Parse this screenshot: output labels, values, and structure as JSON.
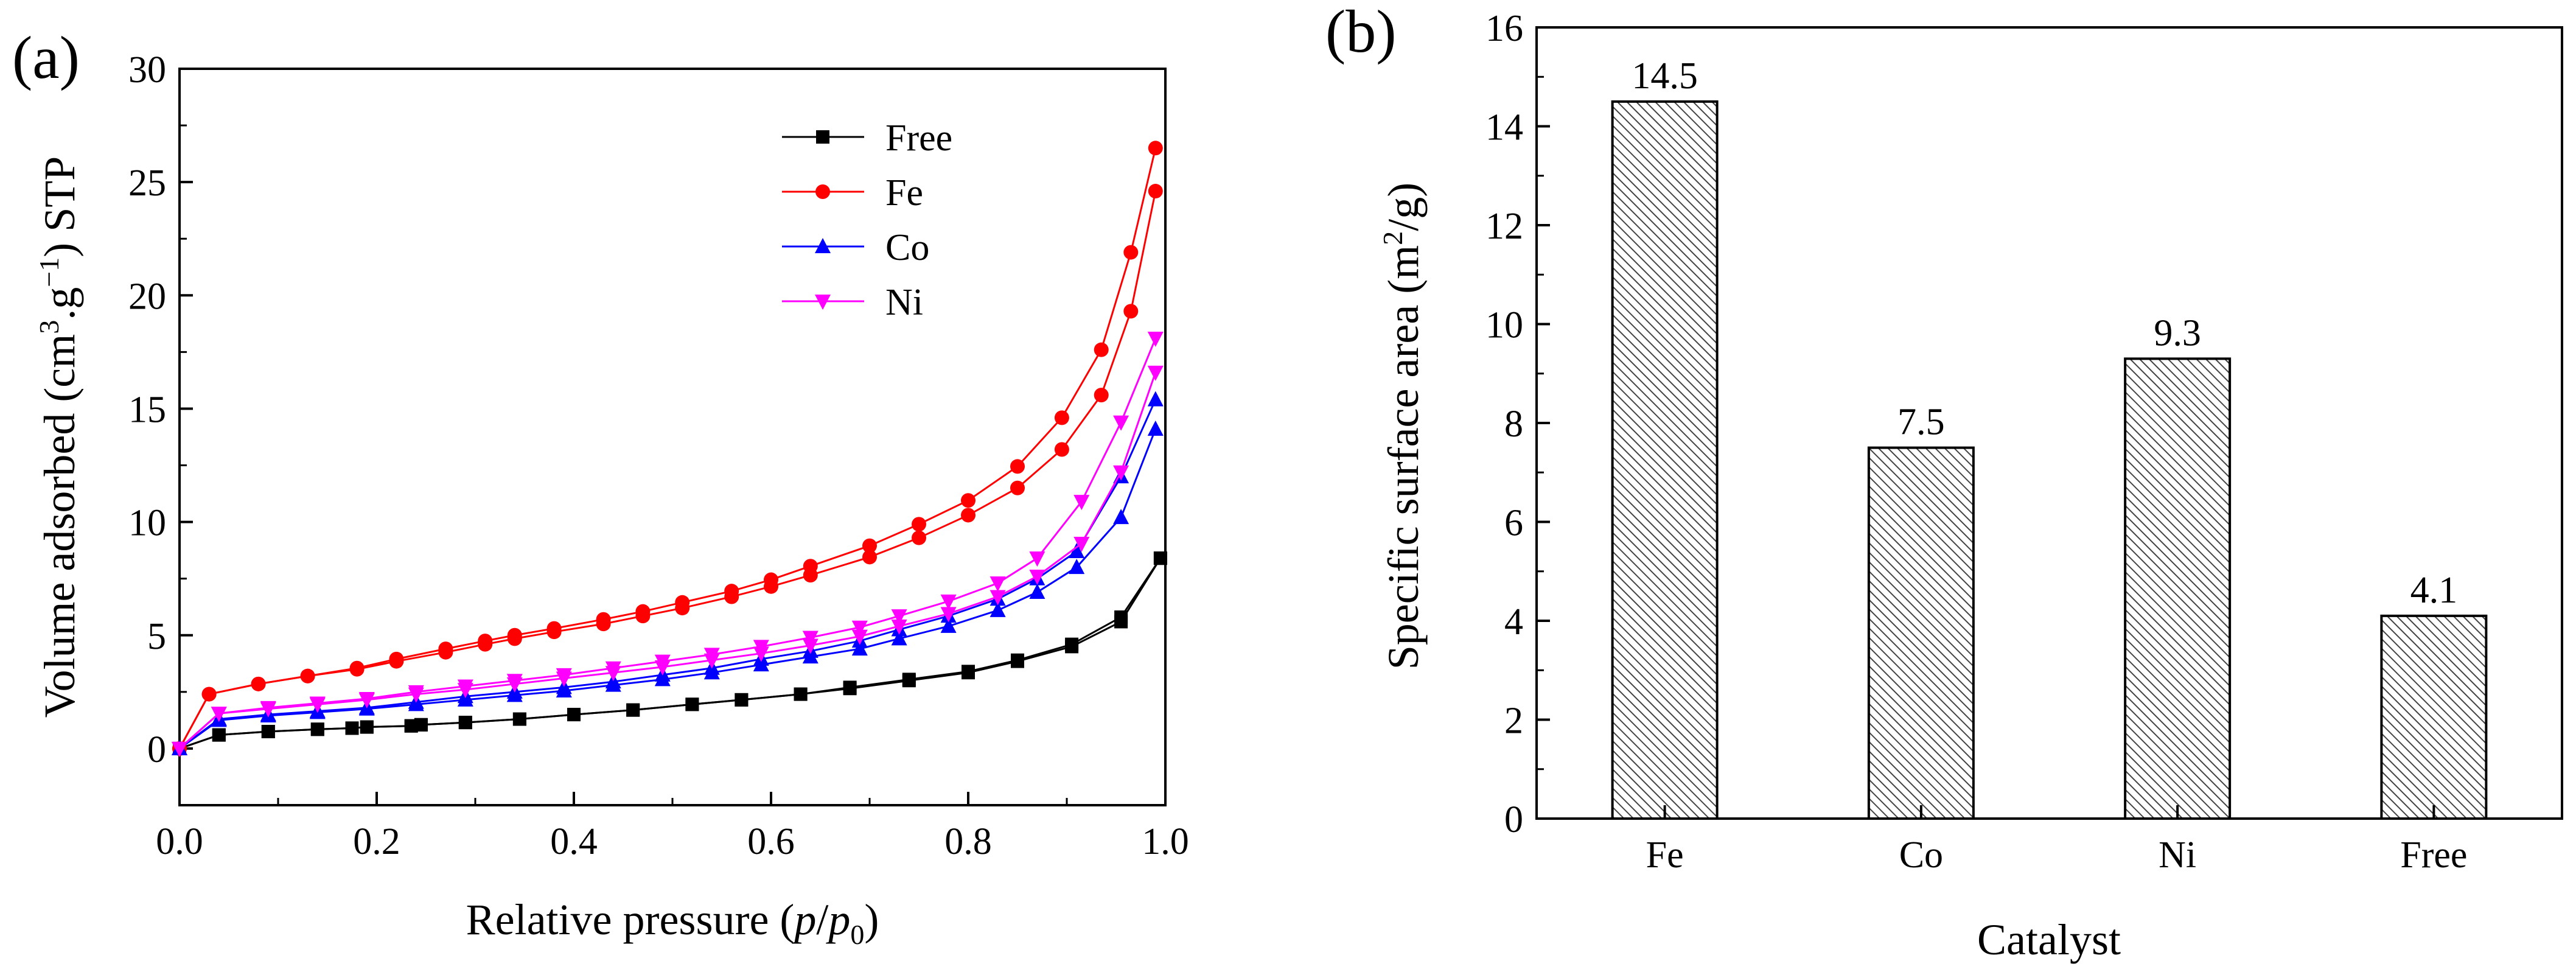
{
  "chart_data": [
    {
      "panel_label": "(a)",
      "type": "line",
      "xlabel_prefix": "Relative pressure (",
      "xlabel_p": "p",
      "xlabel_slash": "/",
      "xlabel_p0": "p",
      "xlabel_sub": "0",
      "xlabel_suffix": ")",
      "ylabel_pre": "Volume adsorbed (cm",
      "ylabel_sup1": "3",
      "ylabel_mid": ".g",
      "ylabel_sup2": "−1",
      "ylabel_post": ") STP",
      "xlim": [
        0,
        1.0
      ],
      "ylim": [
        -2.5,
        30
      ],
      "xticks": [
        "0.0",
        "0.2",
        "0.4",
        "0.6",
        "0.8",
        "1.0"
      ],
      "yticks": [
        "0",
        "5",
        "10",
        "15",
        "20",
        "25",
        "30"
      ],
      "legend_position": "top-center",
      "series": [
        {
          "name": "Free",
          "color": "#000000",
          "marker": "square",
          "x": [
            0.0,
            0.04,
            0.09,
            0.14,
            0.175,
            0.19,
            0.235,
            0.245,
            0.29,
            0.345,
            0.4,
            0.46,
            0.52,
            0.57,
            0.63,
            0.68,
            0.74,
            0.8,
            0.85,
            0.905,
            0.955,
            0.995
          ],
          "adsorption": [
            0.0,
            0.6,
            0.75,
            0.85,
            0.9,
            0.95,
            1.0,
            1.05,
            1.15,
            1.3,
            1.5,
            1.7,
            1.95,
            2.15,
            2.4,
            2.65,
            3.0,
            3.35,
            3.85,
            4.5,
            5.6,
            8.4
          ],
          "desorption": [
            0.0,
            0.6,
            0.75,
            0.85,
            0.9,
            0.95,
            1.0,
            1.05,
            1.15,
            1.3,
            1.5,
            1.7,
            1.95,
            2.15,
            2.4,
            2.7,
            3.05,
            3.4,
            3.9,
            4.6,
            5.8,
            8.4
          ]
        },
        {
          "name": "Fe",
          "color": "#ff0000",
          "marker": "circle",
          "x": [
            0.0,
            0.03,
            0.08,
            0.13,
            0.18,
            0.22,
            0.27,
            0.31,
            0.34,
            0.38,
            0.43,
            0.47,
            0.51,
            0.56,
            0.6,
            0.64,
            0.7,
            0.75,
            0.8,
            0.85,
            0.895,
            0.935,
            0.965,
            0.99
          ],
          "adsorption": [
            0.0,
            2.4,
            2.85,
            3.2,
            3.5,
            3.85,
            4.25,
            4.6,
            4.85,
            5.15,
            5.5,
            5.85,
            6.2,
            6.7,
            7.15,
            7.65,
            8.45,
            9.3,
            10.3,
            11.5,
            13.2,
            15.6,
            19.3,
            24.6
          ],
          "desorption": [
            0.0,
            2.4,
            2.85,
            3.2,
            3.55,
            3.95,
            4.4,
            4.75,
            5.0,
            5.3,
            5.7,
            6.05,
            6.45,
            6.95,
            7.45,
            8.05,
            8.95,
            9.9,
            10.95,
            12.45,
            14.6,
            17.6,
            21.9,
            26.5
          ]
        },
        {
          "name": "Co",
          "color": "#0000ff",
          "marker": "triangle-up",
          "x": [
            0.0,
            0.04,
            0.09,
            0.14,
            0.19,
            0.24,
            0.29,
            0.34,
            0.39,
            0.44,
            0.49,
            0.54,
            0.59,
            0.64,
            0.69,
            0.73,
            0.78,
            0.83,
            0.87,
            0.91,
            0.955,
            0.99
          ],
          "adsorption": [
            0.0,
            1.25,
            1.45,
            1.6,
            1.75,
            1.95,
            2.15,
            2.35,
            2.55,
            2.8,
            3.05,
            3.35,
            3.7,
            4.05,
            4.4,
            4.85,
            5.4,
            6.1,
            6.9,
            8.0,
            10.2,
            14.1
          ],
          "desorption": [
            0.0,
            1.3,
            1.5,
            1.65,
            1.8,
            2.05,
            2.3,
            2.5,
            2.7,
            2.95,
            3.25,
            3.55,
            3.95,
            4.3,
            4.75,
            5.25,
            5.85,
            6.6,
            7.5,
            8.7,
            12.0,
            15.4
          ]
        },
        {
          "name": "Ni",
          "color": "#ff00ff",
          "marker": "triangle-down",
          "x": [
            0.0,
            0.04,
            0.09,
            0.14,
            0.19,
            0.24,
            0.29,
            0.34,
            0.39,
            0.44,
            0.49,
            0.54,
            0.59,
            0.64,
            0.69,
            0.73,
            0.78,
            0.83,
            0.87,
            0.915,
            0.955,
            0.99
          ],
          "adsorption": [
            0.0,
            1.55,
            1.75,
            1.95,
            2.15,
            2.4,
            2.6,
            2.85,
            3.1,
            3.35,
            3.6,
            3.9,
            4.2,
            4.55,
            4.95,
            5.4,
            5.95,
            6.7,
            7.6,
            9.05,
            12.2,
            16.6
          ],
          "desorption": [
            0.0,
            1.55,
            1.8,
            2.0,
            2.2,
            2.5,
            2.75,
            3.0,
            3.25,
            3.55,
            3.85,
            4.15,
            4.5,
            4.9,
            5.35,
            5.85,
            6.5,
            7.3,
            8.4,
            10.9,
            14.4,
            18.1
          ]
        }
      ]
    },
    {
      "panel_label": "(b)",
      "type": "bar",
      "categories": [
        "Fe",
        "Co",
        "Ni",
        "Free"
      ],
      "values": [
        14.5,
        7.5,
        9.3,
        4.1
      ],
      "data_labels": [
        "14.5",
        "7.5",
        "9.3",
        "4.1"
      ],
      "xlabel": "Catalyst",
      "ylabel_pre": "Specific surface area (m",
      "ylabel_sup": "2",
      "ylabel_post": "/g)",
      "ylim": [
        0,
        16
      ],
      "yticks": [
        "0",
        "2",
        "4",
        "6",
        "8",
        "10",
        "12",
        "14",
        "16"
      ],
      "bar_fill": "hatched",
      "bar_color": "#555555"
    }
  ]
}
